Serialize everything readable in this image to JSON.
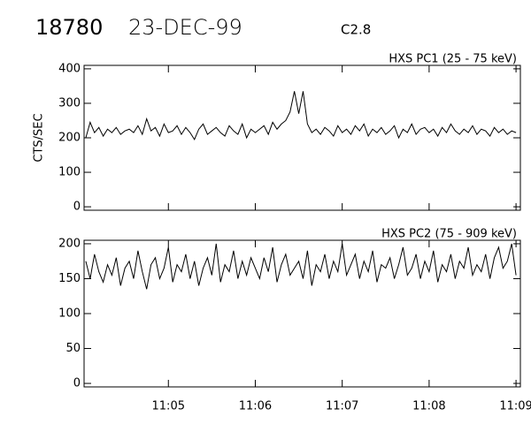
{
  "header": {
    "event": "18780",
    "date": "23-DEC-99",
    "class": "C2.8"
  },
  "chart_data": [
    {
      "type": "line",
      "title": "HXS PC1 (25 - 75 keV)",
      "ylabel": "CTS/SEC",
      "color": "#000000",
      "ylim": [
        -10,
        410
      ],
      "yticks": [
        0,
        100,
        200,
        300,
        400
      ],
      "xlim": [
        4.03,
        9.05
      ],
      "x": [
        4.05,
        4.1,
        4.15,
        4.2,
        4.25,
        4.3,
        4.35,
        4.4,
        4.45,
        4.5,
        4.55,
        4.6,
        4.65,
        4.7,
        4.75,
        4.8,
        4.85,
        4.9,
        4.95,
        5.0,
        5.05,
        5.1,
        5.15,
        5.2,
        5.25,
        5.3,
        5.35,
        5.4,
        5.45,
        5.5,
        5.55,
        5.6,
        5.65,
        5.7,
        5.75,
        5.8,
        5.85,
        5.9,
        5.95,
        6.0,
        6.05,
        6.1,
        6.15,
        6.2,
        6.25,
        6.3,
        6.35,
        6.4,
        6.45,
        6.5,
        6.55,
        6.6,
        6.65,
        6.7,
        6.75,
        6.8,
        6.85,
        6.9,
        6.95,
        7.0,
        7.05,
        7.1,
        7.15,
        7.2,
        7.25,
        7.3,
        7.35,
        7.4,
        7.45,
        7.5,
        7.55,
        7.6,
        7.65,
        7.7,
        7.75,
        7.8,
        7.85,
        7.9,
        7.95,
        8.0,
        8.05,
        8.1,
        8.15,
        8.2,
        8.25,
        8.3,
        8.35,
        8.4,
        8.45,
        8.5,
        8.55,
        8.6,
        8.65,
        8.7,
        8.75,
        8.8,
        8.85,
        8.9,
        8.95,
        9.0
      ],
      "values": [
        200,
        245,
        215,
        230,
        205,
        225,
        215,
        230,
        210,
        220,
        225,
        215,
        235,
        210,
        255,
        220,
        230,
        205,
        240,
        215,
        220,
        235,
        210,
        230,
        215,
        195,
        225,
        240,
        210,
        220,
        230,
        215,
        205,
        235,
        220,
        210,
        240,
        200,
        225,
        215,
        225,
        235,
        210,
        245,
        225,
        240,
        250,
        275,
        335,
        270,
        335,
        240,
        215,
        225,
        210,
        230,
        220,
        205,
        235,
        215,
        225,
        210,
        235,
        220,
        240,
        205,
        225,
        215,
        230,
        210,
        220,
        235,
        200,
        225,
        215,
        240,
        210,
        225,
        230,
        215,
        225,
        205,
        230,
        215,
        240,
        220,
        210,
        225,
        215,
        235,
        210,
        225,
        220,
        205,
        230,
        215,
        225,
        210,
        220,
        215
      ]
    },
    {
      "type": "line",
      "title": "HXS PC2 (75 - 909 keV)",
      "color": "#000000",
      "ylim": [
        -5,
        205
      ],
      "yticks": [
        0,
        50,
        100,
        150,
        200
      ],
      "xlim": [
        4.03,
        9.05
      ],
      "xticks": [
        {
          "value": 5,
          "label": "11:05"
        },
        {
          "value": 6,
          "label": "11:06"
        },
        {
          "value": 7,
          "label": "11:07"
        },
        {
          "value": 8,
          "label": "11:08"
        },
        {
          "value": 9,
          "label": "11:09"
        }
      ],
      "x": [
        4.05,
        4.1,
        4.15,
        4.2,
        4.25,
        4.3,
        4.35,
        4.4,
        4.45,
        4.5,
        4.55,
        4.6,
        4.65,
        4.7,
        4.75,
        4.8,
        4.85,
        4.9,
        4.95,
        5.0,
        5.05,
        5.1,
        5.15,
        5.2,
        5.25,
        5.3,
        5.35,
        5.4,
        5.45,
        5.5,
        5.55,
        5.6,
        5.65,
        5.7,
        5.75,
        5.8,
        5.85,
        5.9,
        5.95,
        6.0,
        6.05,
        6.1,
        6.15,
        6.2,
        6.25,
        6.3,
        6.35,
        6.4,
        6.45,
        6.5,
        6.55,
        6.6,
        6.65,
        6.7,
        6.75,
        6.8,
        6.85,
        6.9,
        6.95,
        7.0,
        7.05,
        7.1,
        7.15,
        7.2,
        7.25,
        7.3,
        7.35,
        7.4,
        7.45,
        7.5,
        7.55,
        7.6,
        7.65,
        7.7,
        7.75,
        7.8,
        7.85,
        7.9,
        7.95,
        8.0,
        8.05,
        8.1,
        8.15,
        8.2,
        8.25,
        8.3,
        8.35,
        8.4,
        8.45,
        8.5,
        8.55,
        8.6,
        8.65,
        8.7,
        8.75,
        8.8,
        8.85,
        8.9,
        8.95,
        9.0
      ],
      "values": [
        175,
        150,
        185,
        160,
        145,
        170,
        155,
        180,
        140,
        165,
        175,
        150,
        190,
        160,
        135,
        170,
        180,
        150,
        165,
        195,
        145,
        170,
        160,
        185,
        150,
        175,
        140,
        165,
        180,
        155,
        200,
        145,
        170,
        160,
        190,
        150,
        175,
        155,
        180,
        165,
        150,
        180,
        160,
        195,
        145,
        170,
        185,
        155,
        165,
        175,
        150,
        190,
        140,
        170,
        160,
        185,
        150,
        175,
        160,
        200,
        155,
        170,
        185,
        150,
        175,
        160,
        190,
        145,
        170,
        165,
        180,
        150,
        170,
        195,
        155,
        165,
        185,
        150,
        175,
        160,
        190,
        145,
        170,
        160,
        185,
        150,
        175,
        165,
        195,
        155,
        170,
        160,
        185,
        150,
        180,
        195,
        165,
        175,
        200,
        155
      ]
    }
  ]
}
